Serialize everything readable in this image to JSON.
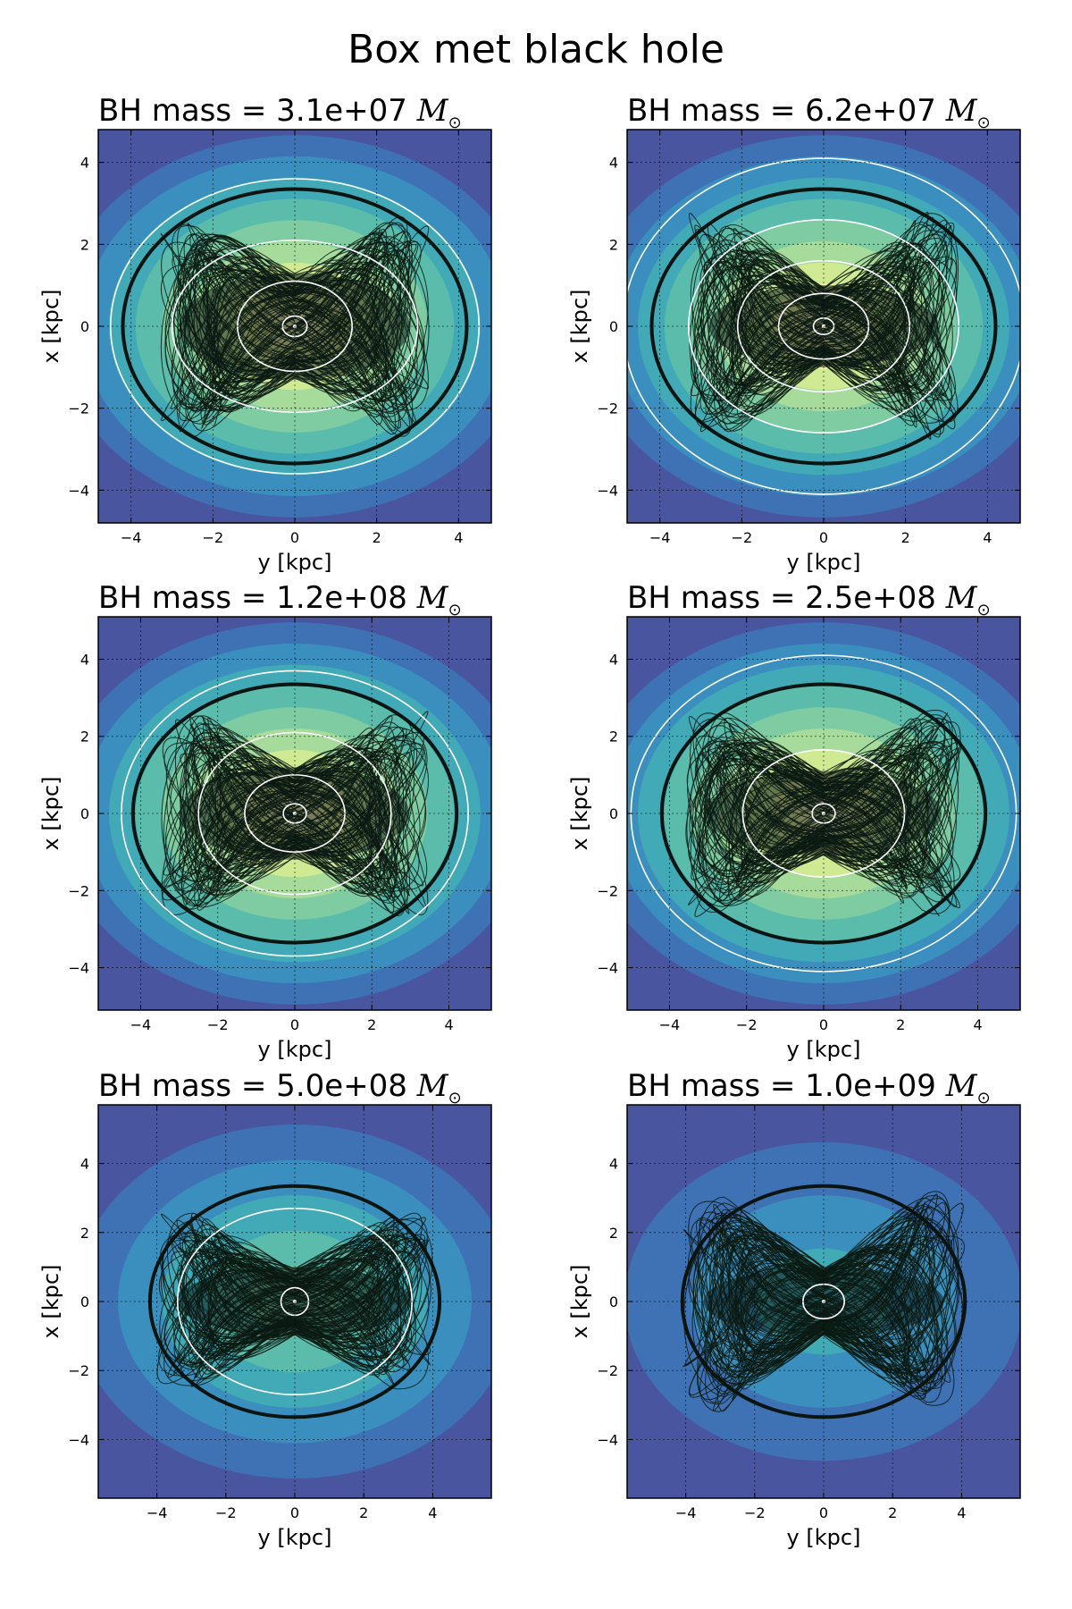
{
  "figure": {
    "title": "Box met black hole"
  },
  "chart_data": [
    {
      "type": "contour",
      "title_prefix": "BH mass = ",
      "mass_label": "3.1e+07",
      "unit": "M",
      "unit_sub": "⊙",
      "xlabel": "y [kpc]",
      "ylabel": "x [kpc]",
      "xlim": [
        -4.8,
        4.8
      ],
      "ylim": [
        -4.8,
        4.8
      ],
      "xticks": [
        -4,
        -2,
        0,
        2,
        4
      ],
      "yticks": [
        -4,
        -2,
        0,
        2,
        4
      ],
      "grid": true,
      "orbit": {
        "a": 3.3,
        "b": 2.7,
        "band": 1.3,
        "color": "#0a1a12"
      },
      "zero_velocity_curve": {
        "a": 4.2,
        "b": 3.35
      },
      "white_contours": [
        [
          0.3,
          0.25
        ],
        [
          1.4,
          1.1
        ],
        [
          3.0,
          2.1
        ],
        [
          4.5,
          3.6
        ]
      ],
      "density_colors": [
        "#4a55a0",
        "#3f71b5",
        "#3b8fbe",
        "#42a9b6",
        "#5bbcab",
        "#7fcca2",
        "#a6db9c",
        "#d0ea94",
        "#f4f49a",
        "#fff5b0"
      ]
    },
    {
      "type": "contour",
      "title_prefix": "BH mass = ",
      "mass_label": "6.2e+07",
      "unit": "M",
      "unit_sub": "⊙",
      "xlabel": "y [kpc]",
      "ylabel": "x [kpc]",
      "xlim": [
        -4.8,
        4.8
      ],
      "ylim": [
        -4.8,
        4.8
      ],
      "xticks": [
        -4,
        -2,
        0,
        2,
        4
      ],
      "yticks": [
        -4,
        -2,
        0,
        2,
        4
      ],
      "grid": true,
      "orbit": {
        "a": 3.3,
        "b": 2.8,
        "band": 1.0,
        "color": "#0a1a12"
      },
      "zero_velocity_curve": {
        "a": 4.2,
        "b": 3.35
      },
      "white_contours": [
        [
          0.25,
          0.2
        ],
        [
          1.1,
          0.8
        ],
        [
          2.1,
          1.6
        ],
        [
          3.3,
          2.6
        ],
        [
          4.9,
          4.1
        ]
      ],
      "density_colors": [
        "#4a55a0",
        "#3f71b5",
        "#3b8fbe",
        "#42a9b6",
        "#5bbcab",
        "#7fcca2",
        "#a6db9c",
        "#d0ea94",
        "#f4f49a",
        "#fff5b0"
      ]
    },
    {
      "type": "contour",
      "title_prefix": "BH mass = ",
      "mass_label": "1.2e+08",
      "unit": "M",
      "unit_sub": "⊙",
      "xlabel": "y [kpc]",
      "ylabel": "x [kpc]",
      "xlim": [
        -5.1,
        5.1
      ],
      "ylim": [
        -5.1,
        5.1
      ],
      "xticks": [
        -4,
        -2,
        0,
        2,
        4
      ],
      "yticks": [
        -4,
        -2,
        0,
        2,
        4
      ],
      "grid": true,
      "orbit": {
        "a": 3.5,
        "b": 2.7,
        "band": 1.2,
        "color": "#0a1a12"
      },
      "zero_velocity_curve": {
        "a": 4.2,
        "b": 3.35
      },
      "white_contours": [
        [
          0.3,
          0.25
        ],
        [
          1.3,
          1.0
        ],
        [
          2.5,
          2.1
        ],
        [
          4.5,
          3.7
        ]
      ],
      "density_colors": [
        "#4a55a0",
        "#3f71b5",
        "#3b8fbe",
        "#42a9b6",
        "#5bbcab",
        "#7fcca2",
        "#a6db9c",
        "#d0ea94",
        "#f4f49a",
        "#fff5b0"
      ]
    },
    {
      "type": "contour",
      "title_prefix": "BH mass = ",
      "mass_label": "2.5e+08",
      "unit": "M",
      "unit_sub": "⊙",
      "xlabel": "y [kpc]",
      "ylabel": "x [kpc]",
      "xlim": [
        -5.1,
        5.1
      ],
      "ylim": [
        -5.1,
        5.1
      ],
      "xticks": [
        -4,
        -2,
        0,
        2,
        4
      ],
      "yticks": [
        -4,
        -2,
        0,
        2,
        4
      ],
      "grid": true,
      "orbit": {
        "a": 3.6,
        "b": 2.7,
        "band": 1.1,
        "color": "#0a1a12"
      },
      "zero_velocity_curve": {
        "a": 4.2,
        "b": 3.35
      },
      "white_contours": [
        [
          0.3,
          0.25
        ],
        [
          2.1,
          1.65
        ],
        [
          5.0,
          4.1
        ]
      ],
      "density_colors": [
        "#4a55a0",
        "#3f71b5",
        "#3b8fbe",
        "#42a9b6",
        "#5bbcab",
        "#7fcca2",
        "#a6db9c",
        "#d0ea94",
        "#f4f49a",
        "#fff5b0"
      ]
    },
    {
      "type": "contour",
      "title_prefix": "BH mass = ",
      "mass_label": "5.0e+08",
      "unit": "M",
      "unit_sub": "⊙",
      "xlabel": "y [kpc]",
      "ylabel": "x [kpc]",
      "xlim": [
        -5.7,
        5.7
      ],
      "ylim": [
        -5.7,
        5.7
      ],
      "xticks": [
        -4,
        -2,
        0,
        2,
        4
      ],
      "yticks": [
        -4,
        -2,
        0,
        2,
        4
      ],
      "grid": true,
      "orbit": {
        "a": 4.0,
        "b": 2.6,
        "band": 1.0,
        "color": "#0a1a12"
      },
      "zero_velocity_curve": {
        "a": 4.2,
        "b": 3.35
      },
      "white_contours": [
        [
          0.4,
          0.4
        ],
        [
          3.4,
          2.7
        ]
      ],
      "density_colors": [
        "#4a55a0",
        "#3f71b5",
        "#3b8fbe",
        "#42a9b6",
        "#5bbcab",
        "#7fcca2"
      ]
    },
    {
      "type": "contour",
      "title_prefix": "BH mass = ",
      "mass_label": "1.0e+09",
      "unit": "M",
      "unit_sub": "⊙",
      "xlabel": "y [kpc]",
      "ylabel": "x [kpc]",
      "xlim": [
        -5.7,
        5.7
      ],
      "ylim": [
        -5.7,
        5.7
      ],
      "xticks": [
        -4,
        -2,
        0,
        2,
        4
      ],
      "yticks": [
        -4,
        -2,
        0,
        2,
        4
      ],
      "grid": true,
      "orbit": {
        "a": 4.1,
        "b": 3.2,
        "band": 1.0,
        "color": "#0a1a12"
      },
      "zero_velocity_curve": {
        "a": 4.1,
        "b": 3.35
      },
      "white_contours": [
        [
          0.6,
          0.5
        ]
      ],
      "density_colors": [
        "#4a55a0",
        "#3f71b5",
        "#3b8fbe",
        "#42a9b6"
      ]
    }
  ]
}
